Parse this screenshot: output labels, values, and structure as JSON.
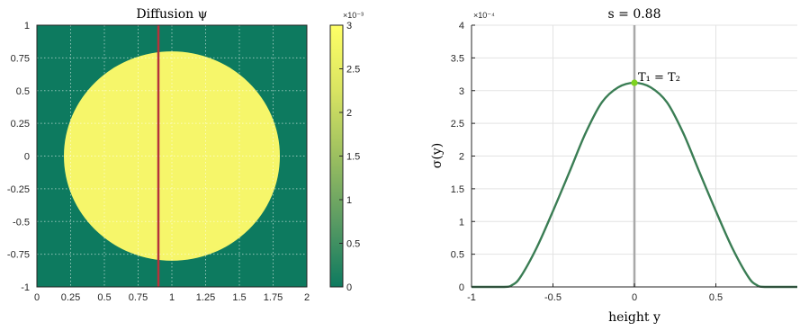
{
  "chart_data": [
    {
      "type": "heatmap",
      "title": "Diffusion ψ",
      "xlim": [
        0,
        2
      ],
      "ylim": [
        -1,
        1
      ],
      "x_ticks": [
        "0",
        "0.25",
        "0.5",
        "0.75",
        "1",
        "1.25",
        "1.5",
        "1.75",
        "2"
      ],
      "y_ticks": [
        "1",
        "0.75",
        "0.5",
        "0.25",
        "0",
        "-0.25",
        "-0.5",
        "-0.75",
        "-1"
      ],
      "grid": true,
      "field": {
        "shape": "disk",
        "center": [
          1.0,
          0.0
        ],
        "radius": 0.8,
        "inside_value": 0.003,
        "outside_value": 0
      },
      "vertical_line": {
        "x": 0.9,
        "color": "#b5333c"
      },
      "colorbar": {
        "range": [
          0,
          0.003
        ],
        "tick_labels": [
          "3",
          "2.5",
          "2",
          "1.5",
          "1",
          "0.5",
          "0"
        ],
        "exponent": "×10⁻³",
        "color_low": "#0d7a5f",
        "color_high": "#ffff66"
      }
    },
    {
      "type": "line",
      "title": "s = 0.88",
      "xlabel": "height y",
      "ylabel": "σ(y)",
      "xlim": [
        -1,
        1
      ],
      "ylim": [
        0,
        0.0004
      ],
      "x_ticks": [
        "-1",
        "-0.5",
        "0",
        "0.5"
      ],
      "y_ticks": [
        "4",
        "3.5",
        "3",
        "2.5",
        "2",
        "1.5",
        "1",
        "0.5",
        "0"
      ],
      "y_exponent": "×10⁻⁴",
      "grid": true,
      "series": [
        {
          "x": [
            -1,
            -0.8,
            -0.75,
            -0.7,
            -0.6,
            -0.5,
            -0.4,
            -0.3,
            -0.2,
            -0.1,
            0,
            0.1,
            0.2,
            0.3,
            0.4,
            0.5,
            0.6,
            0.7,
            0.75,
            0.8,
            1
          ],
          "values": [
            0,
            0,
            3e-06,
            1.5e-05,
            6e-05,
            0.000116,
            0.000175,
            0.000235,
            0.000282,
            0.000305,
            0.000312,
            0.000305,
            0.000282,
            0.000235,
            0.000175,
            0.000116,
            6e-05,
            1.5e-05,
            3e-06,
            0,
            0
          ],
          "color": "#3a7d54"
        }
      ],
      "vertical_line": {
        "x": 0,
        "color": "#a8a8a8"
      },
      "marker": {
        "x": 0,
        "y": 0.000312,
        "label": "T₁ = T₂",
        "color": "#7fd321"
      }
    }
  ]
}
